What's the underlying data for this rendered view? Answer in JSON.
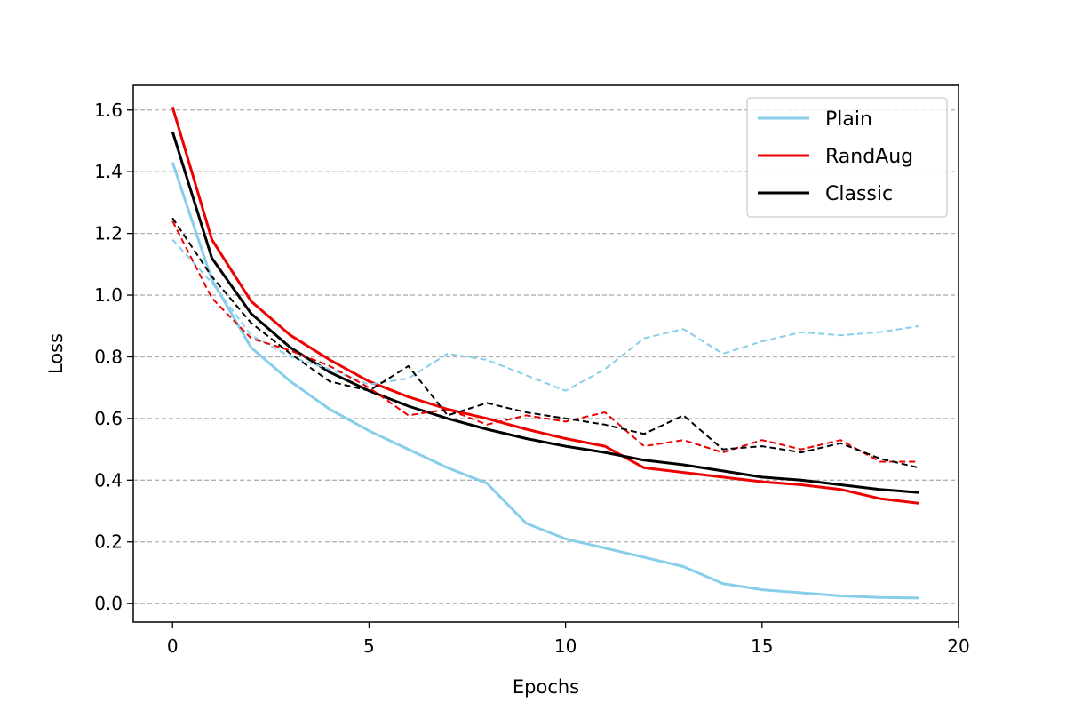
{
  "chart_data": {
    "type": "line",
    "title": "",
    "xlabel": "Epochs",
    "ylabel": "Loss",
    "xlim": [
      -1,
      20
    ],
    "ylim": [
      -0.06,
      1.68
    ],
    "xticks": [
      0,
      5,
      10,
      15,
      20
    ],
    "yticks": [
      0.0,
      0.2,
      0.4,
      0.6,
      0.8,
      1.0,
      1.2,
      1.4,
      1.6
    ],
    "grid": "horizontal dashed",
    "legend_position": "top-right",
    "x": [
      0,
      1,
      2,
      3,
      4,
      5,
      6,
      7,
      8,
      9,
      10,
      11,
      12,
      13,
      14,
      15,
      16,
      17,
      18,
      19
    ],
    "series": [
      {
        "name": "Plain",
        "color": "#87CEEB",
        "style": "solid",
        "values": [
          1.43,
          1.05,
          0.83,
          0.72,
          0.63,
          0.56,
          0.5,
          0.44,
          0.39,
          0.26,
          0.21,
          0.18,
          0.15,
          0.12,
          0.065,
          0.045,
          0.035,
          0.025,
          0.02,
          0.018
        ]
      },
      {
        "name": "RandAug",
        "color": "#EE0000",
        "style": "solid",
        "values": [
          1.61,
          1.18,
          0.98,
          0.87,
          0.79,
          0.72,
          0.67,
          0.63,
          0.6,
          0.565,
          0.535,
          0.51,
          0.44,
          0.425,
          0.41,
          0.395,
          0.385,
          0.37,
          0.34,
          0.325
        ]
      },
      {
        "name": "Classic",
        "color": "#000000",
        "style": "solid",
        "values": [
          1.53,
          1.12,
          0.94,
          0.83,
          0.75,
          0.69,
          0.64,
          0.6,
          0.565,
          0.535,
          0.51,
          0.49,
          0.465,
          0.45,
          0.43,
          0.41,
          0.4,
          0.385,
          0.37,
          0.36
        ]
      },
      {
        "color": "#87CEEB",
        "style": "dashed",
        "values": [
          1.18,
          1.04,
          0.87,
          0.8,
          0.76,
          0.71,
          0.73,
          0.81,
          0.79,
          0.74,
          0.69,
          0.76,
          0.86,
          0.89,
          0.81,
          0.85,
          0.88,
          0.87,
          0.88,
          0.9
        ]
      },
      {
        "color": "#EE0000",
        "style": "dashed",
        "values": [
          1.24,
          0.99,
          0.86,
          0.82,
          0.77,
          0.7,
          0.61,
          0.63,
          0.58,
          0.61,
          0.59,
          0.62,
          0.51,
          0.53,
          0.49,
          0.53,
          0.5,
          0.53,
          0.46,
          0.46
        ]
      },
      {
        "color": "#000000",
        "style": "dashed",
        "values": [
          1.25,
          1.06,
          0.91,
          0.81,
          0.72,
          0.69,
          0.77,
          0.61,
          0.65,
          0.62,
          0.6,
          0.58,
          0.55,
          0.61,
          0.5,
          0.51,
          0.49,
          0.52,
          0.47,
          0.44
        ]
      }
    ]
  }
}
